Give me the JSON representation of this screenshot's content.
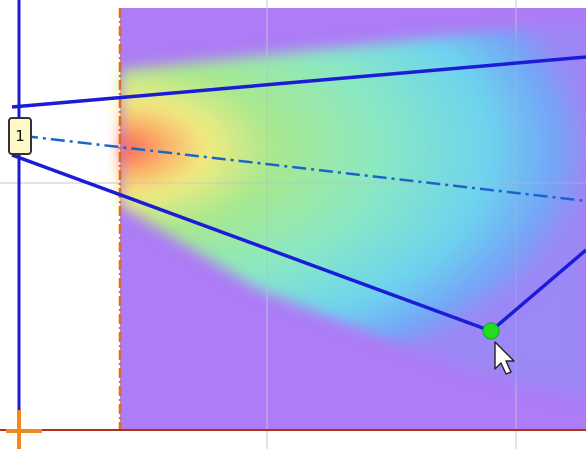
{
  "source_marker": {
    "label": "1",
    "icon": "source-marker-icon"
  },
  "cursor": {
    "icon": "arrow-cursor-icon"
  },
  "colors": {
    "background_field": "#ad7cf6",
    "beam_line": "#1c1cd8",
    "axis_line": "#1b1bd1",
    "baseline": "#b0301a",
    "origin_marker": "#f08a1c",
    "boundary_line": "#e06a20",
    "control_point": "#22dd22",
    "label_fill": "#fff8c8"
  }
}
